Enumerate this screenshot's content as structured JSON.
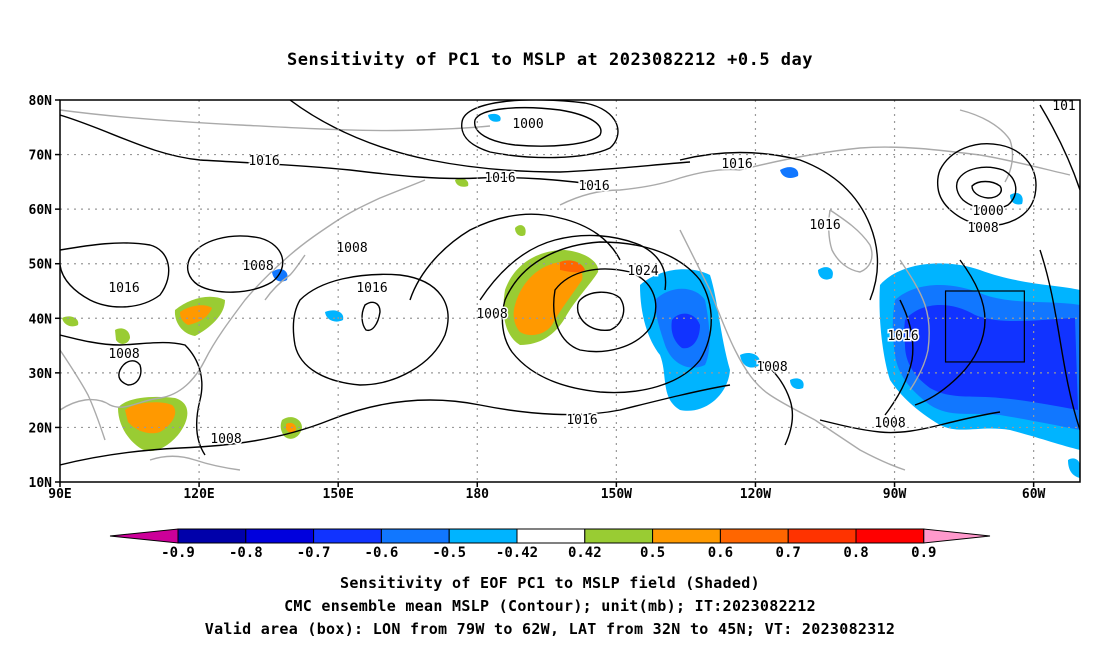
{
  "title": "Sensitivity of PC1 to MSLP at 2023082212 +0.5 day",
  "lat_labels": [
    "80N",
    "70N",
    "60N",
    "50N",
    "40N",
    "30N",
    "20N",
    "10N"
  ],
  "lon_labels": [
    "90E",
    "120E",
    "150E",
    "180",
    "150W",
    "120W",
    "90W",
    "60W"
  ],
  "contour_labels": [
    "1000",
    "1016",
    "1016",
    "1016",
    "1016",
    "1008",
    "1008",
    "1016",
    "1016",
    "1008",
    "1008",
    "1024",
    "1008",
    "1016",
    "1016",
    "1000",
    "1008",
    "1008",
    "1008",
    "1016",
    "1008",
    "101"
  ],
  "colorbar": {
    "ticks": [
      "-0.9",
      "-0.8",
      "-0.7",
      "-0.6",
      "-0.5",
      "-0.42",
      "0.42",
      "0.5",
      "0.6",
      "0.7",
      "0.8",
      "0.9"
    ],
    "colors": [
      "#0000aa",
      "#0000dd",
      "#1133ff",
      "#1177ff",
      "#00b4ff",
      "#ffffff",
      "#99cc33",
      "#ff9900",
      "#ff6600",
      "#ff3300",
      "#ff0000"
    ],
    "low_end_color": "#cc0099",
    "high_end_color": "#ff99cc"
  },
  "valid_box": {
    "lon_w": -79,
    "lon_e": -62,
    "lat_s": 32,
    "lat_n": 45
  },
  "footer": {
    "line1": "Sensitivity of EOF PC1 to MSLP field (Shaded)",
    "line2": "CMC ensemble mean MSLP (Contour); unit(mb); IT:2023082212",
    "line3": "Valid area (box): LON from 79W to 62W, LAT from 32N to 45N; VT: 2023082312"
  }
}
